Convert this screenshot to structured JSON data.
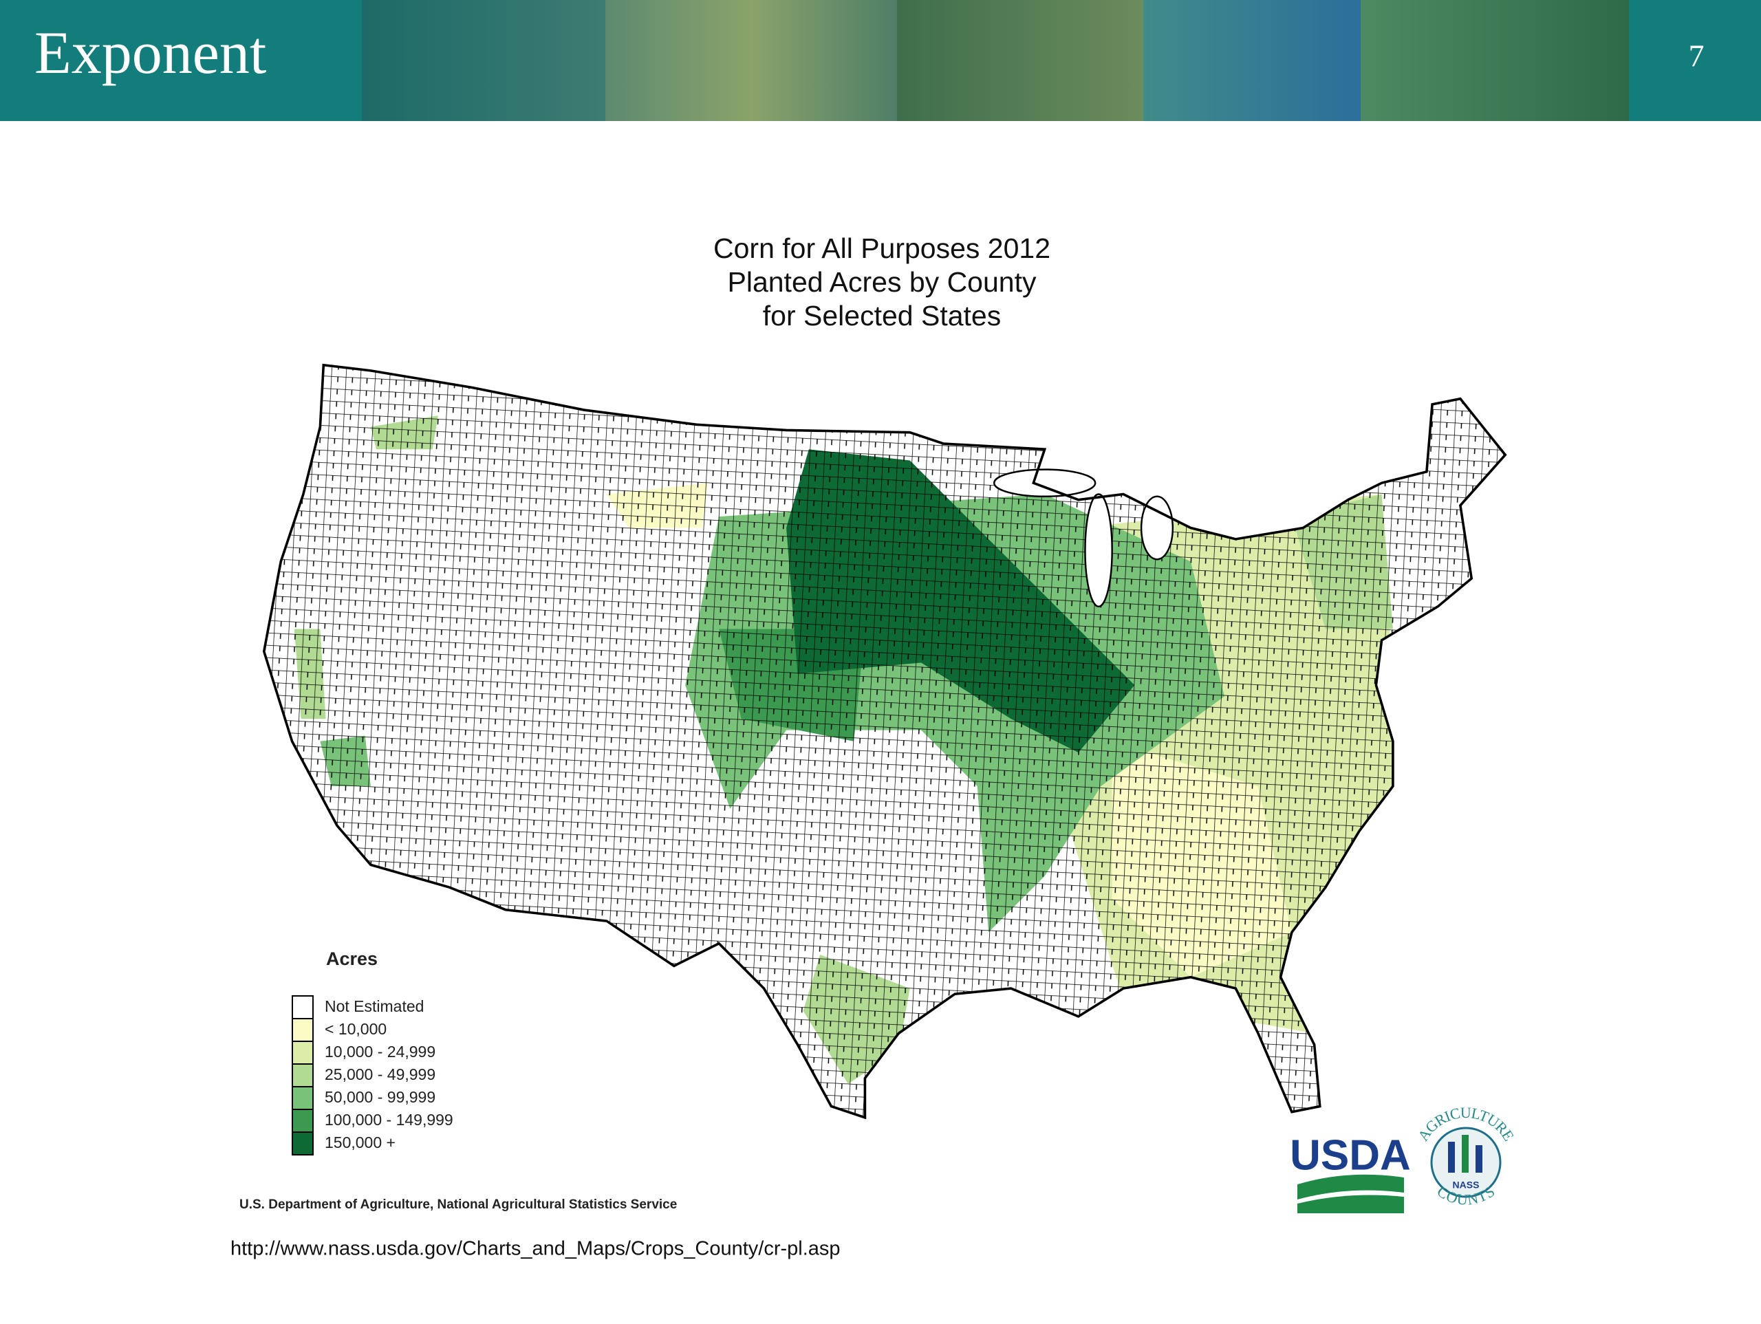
{
  "header": {
    "logo": "Exponent",
    "page_number": "7"
  },
  "map": {
    "title": [
      "Corn for All Purposes 2012",
      "Planted Acres by County",
      "for Selected States"
    ],
    "legend": {
      "title": "Acres",
      "items": [
        {
          "label": "Not Estimated",
          "color": "#ffffff"
        },
        {
          "label": "< 10,000",
          "color": "#fbfbc6"
        },
        {
          "label": "10,000 -  24,999",
          "color": "#dcedaa"
        },
        {
          "label": "25,000 -  49,999",
          "color": "#b1db93"
        },
        {
          "label": "50,000 -  99,999",
          "color": "#79c27a"
        },
        {
          "label": "100,000 -  149,999",
          "color": "#3b9a4f"
        },
        {
          "label": "150,000 +",
          "color": "#0e6a35"
        }
      ]
    },
    "source": "U.S. Department of Agriculture, National Agricultural Statistics Service"
  },
  "logo": {
    "usda": "USDA",
    "ring_top": "AGRICULTURE",
    "ring_bottom": "COUNTS",
    "badge": "NASS"
  },
  "url": "http://www.nass.usda.gov/Charts_and_Maps/Crops_County/cr-pl.asp"
}
